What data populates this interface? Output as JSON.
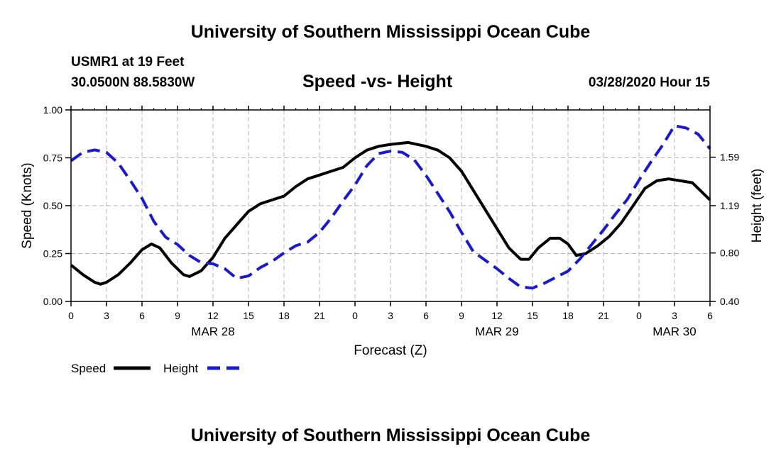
{
  "header": {
    "title": "University of Southern Mississippi Ocean Cube",
    "station": "USMR1 at 19 Feet",
    "coords": "30.0500N 88.5830W",
    "chart_title": "Speed -vs- Height",
    "datetime": "03/28/2020 Hour 15"
  },
  "footer": {
    "title": "University of Southern Mississippi Ocean Cube"
  },
  "colors": {
    "speed": "#000000",
    "height": "#1a1acc",
    "grid": "#b4b4b4"
  },
  "chart_data": {
    "type": "line",
    "title": "Speed -vs- Height",
    "xlabel": "Forecast (Z)",
    "ylabel_left": "Speed (Knots)",
    "ylabel_right": "Height (feet)",
    "x_range_hours": [
      0,
      54
    ],
    "x_ticks": [
      {
        "h": 0,
        "label": "0"
      },
      {
        "h": 3,
        "label": "3"
      },
      {
        "h": 6,
        "label": "6"
      },
      {
        "h": 9,
        "label": "9"
      },
      {
        "h": 12,
        "label": "12"
      },
      {
        "h": 15,
        "label": "15"
      },
      {
        "h": 18,
        "label": "18"
      },
      {
        "h": 21,
        "label": "21"
      },
      {
        "h": 24,
        "label": "0"
      },
      {
        "h": 27,
        "label": "3"
      },
      {
        "h": 30,
        "label": "6"
      },
      {
        "h": 33,
        "label": "9"
      },
      {
        "h": 36,
        "label": "12"
      },
      {
        "h": 39,
        "label": "15"
      },
      {
        "h": 42,
        "label": "18"
      },
      {
        "h": 45,
        "label": "21"
      },
      {
        "h": 48,
        "label": "0"
      },
      {
        "h": 51,
        "label": "3"
      },
      {
        "h": 54,
        "label": "6"
      }
    ],
    "day_labels": [
      {
        "h": 12,
        "label": "MAR 28"
      },
      {
        "h": 36,
        "label": "MAR 29"
      },
      {
        "h": 51,
        "label": "MAR 30"
      }
    ],
    "left_axis": {
      "range": [
        0,
        1
      ],
      "ticks": [
        {
          "v": 0,
          "label": "0.00"
        },
        {
          "v": 0.25,
          "label": "0.25"
        },
        {
          "v": 0.5,
          "label": "0.50"
        },
        {
          "v": 0.75,
          "label": "0.75"
        },
        {
          "v": 1,
          "label": "1.00"
        }
      ]
    },
    "right_axis": {
      "range": [
        0.4,
        1.98
      ],
      "ticks": [
        {
          "v": 0.4,
          "label": "0.40"
        },
        {
          "v": 0.8,
          "label": "0.80"
        },
        {
          "v": 1.19,
          "label": "1.19"
        },
        {
          "v": 1.59,
          "label": "1.59"
        }
      ]
    },
    "grid": true,
    "series": [
      {
        "name": "Speed",
        "axis": "left",
        "style": "solid",
        "points": [
          [
            0,
            0.19
          ],
          [
            1,
            0.14
          ],
          [
            2,
            0.1
          ],
          [
            2.5,
            0.09
          ],
          [
            3,
            0.1
          ],
          [
            4,
            0.14
          ],
          [
            5,
            0.2
          ],
          [
            6,
            0.27
          ],
          [
            6.8,
            0.3
          ],
          [
            7.5,
            0.28
          ],
          [
            8.5,
            0.2
          ],
          [
            9.5,
            0.14
          ],
          [
            10,
            0.13
          ],
          [
            11,
            0.16
          ],
          [
            12,
            0.23
          ],
          [
            13,
            0.33
          ],
          [
            14,
            0.4
          ],
          [
            15,
            0.47
          ],
          [
            16,
            0.51
          ],
          [
            17,
            0.53
          ],
          [
            18,
            0.55
          ],
          [
            19,
            0.6
          ],
          [
            20,
            0.64
          ],
          [
            21,
            0.66
          ],
          [
            22,
            0.68
          ],
          [
            23,
            0.7
          ],
          [
            24,
            0.75
          ],
          [
            25,
            0.79
          ],
          [
            26,
            0.81
          ],
          [
            27,
            0.82
          ],
          [
            28.5,
            0.83
          ],
          [
            30,
            0.81
          ],
          [
            31,
            0.79
          ],
          [
            32,
            0.75
          ],
          [
            33,
            0.68
          ],
          [
            34,
            0.58
          ],
          [
            35,
            0.48
          ],
          [
            36,
            0.38
          ],
          [
            37,
            0.28
          ],
          [
            38,
            0.22
          ],
          [
            38.7,
            0.22
          ],
          [
            39.5,
            0.28
          ],
          [
            40.5,
            0.33
          ],
          [
            41.3,
            0.33
          ],
          [
            42,
            0.3
          ],
          [
            42.7,
            0.24
          ],
          [
            43.5,
            0.25
          ],
          [
            44.5,
            0.29
          ],
          [
            45.5,
            0.34
          ],
          [
            46.5,
            0.41
          ],
          [
            47.5,
            0.5
          ],
          [
            48.5,
            0.59
          ],
          [
            49.5,
            0.63
          ],
          [
            50.5,
            0.64
          ],
          [
            51.5,
            0.63
          ],
          [
            52.5,
            0.62
          ],
          [
            53.5,
            0.56
          ],
          [
            54,
            0.53
          ]
        ]
      },
      {
        "name": "Height",
        "axis": "right",
        "style": "dashed",
        "points": [
          [
            0,
            1.56
          ],
          [
            1,
            1.63
          ],
          [
            2,
            1.65
          ],
          [
            3,
            1.63
          ],
          [
            4,
            1.54
          ],
          [
            5,
            1.4
          ],
          [
            6,
            1.25
          ],
          [
            7,
            1.06
          ],
          [
            8,
            0.93
          ],
          [
            9,
            0.87
          ],
          [
            10,
            0.78
          ],
          [
            11,
            0.72
          ],
          [
            12,
            0.71
          ],
          [
            13,
            0.67
          ],
          [
            14,
            0.59
          ],
          [
            15,
            0.61
          ],
          [
            16,
            0.68
          ],
          [
            17,
            0.73
          ],
          [
            18,
            0.8
          ],
          [
            19,
            0.86
          ],
          [
            20,
            0.89
          ],
          [
            21,
            0.97
          ],
          [
            22,
            1.09
          ],
          [
            23,
            1.23
          ],
          [
            24,
            1.36
          ],
          [
            25,
            1.52
          ],
          [
            26,
            1.62
          ],
          [
            27,
            1.64
          ],
          [
            28,
            1.63
          ],
          [
            29,
            1.57
          ],
          [
            30,
            1.44
          ],
          [
            31,
            1.29
          ],
          [
            32,
            1.14
          ],
          [
            33,
            0.97
          ],
          [
            34,
            0.81
          ],
          [
            35,
            0.74
          ],
          [
            36,
            0.67
          ],
          [
            37,
            0.59
          ],
          [
            38,
            0.52
          ],
          [
            39,
            0.51
          ],
          [
            40,
            0.55
          ],
          [
            41,
            0.6
          ],
          [
            42,
            0.65
          ],
          [
            43,
            0.75
          ],
          [
            44,
            0.87
          ],
          [
            45,
            0.99
          ],
          [
            46,
            1.12
          ],
          [
            47,
            1.24
          ],
          [
            48,
            1.4
          ],
          [
            49,
            1.55
          ],
          [
            50,
            1.69
          ],
          [
            51,
            1.85
          ],
          [
            52,
            1.83
          ],
          [
            53,
            1.78
          ],
          [
            54,
            1.66
          ]
        ]
      }
    ],
    "legend": [
      {
        "name": "Speed",
        "style": "solid"
      },
      {
        "name": "Height",
        "style": "dashed"
      }
    ],
    "legend_position": "bottom-left"
  }
}
